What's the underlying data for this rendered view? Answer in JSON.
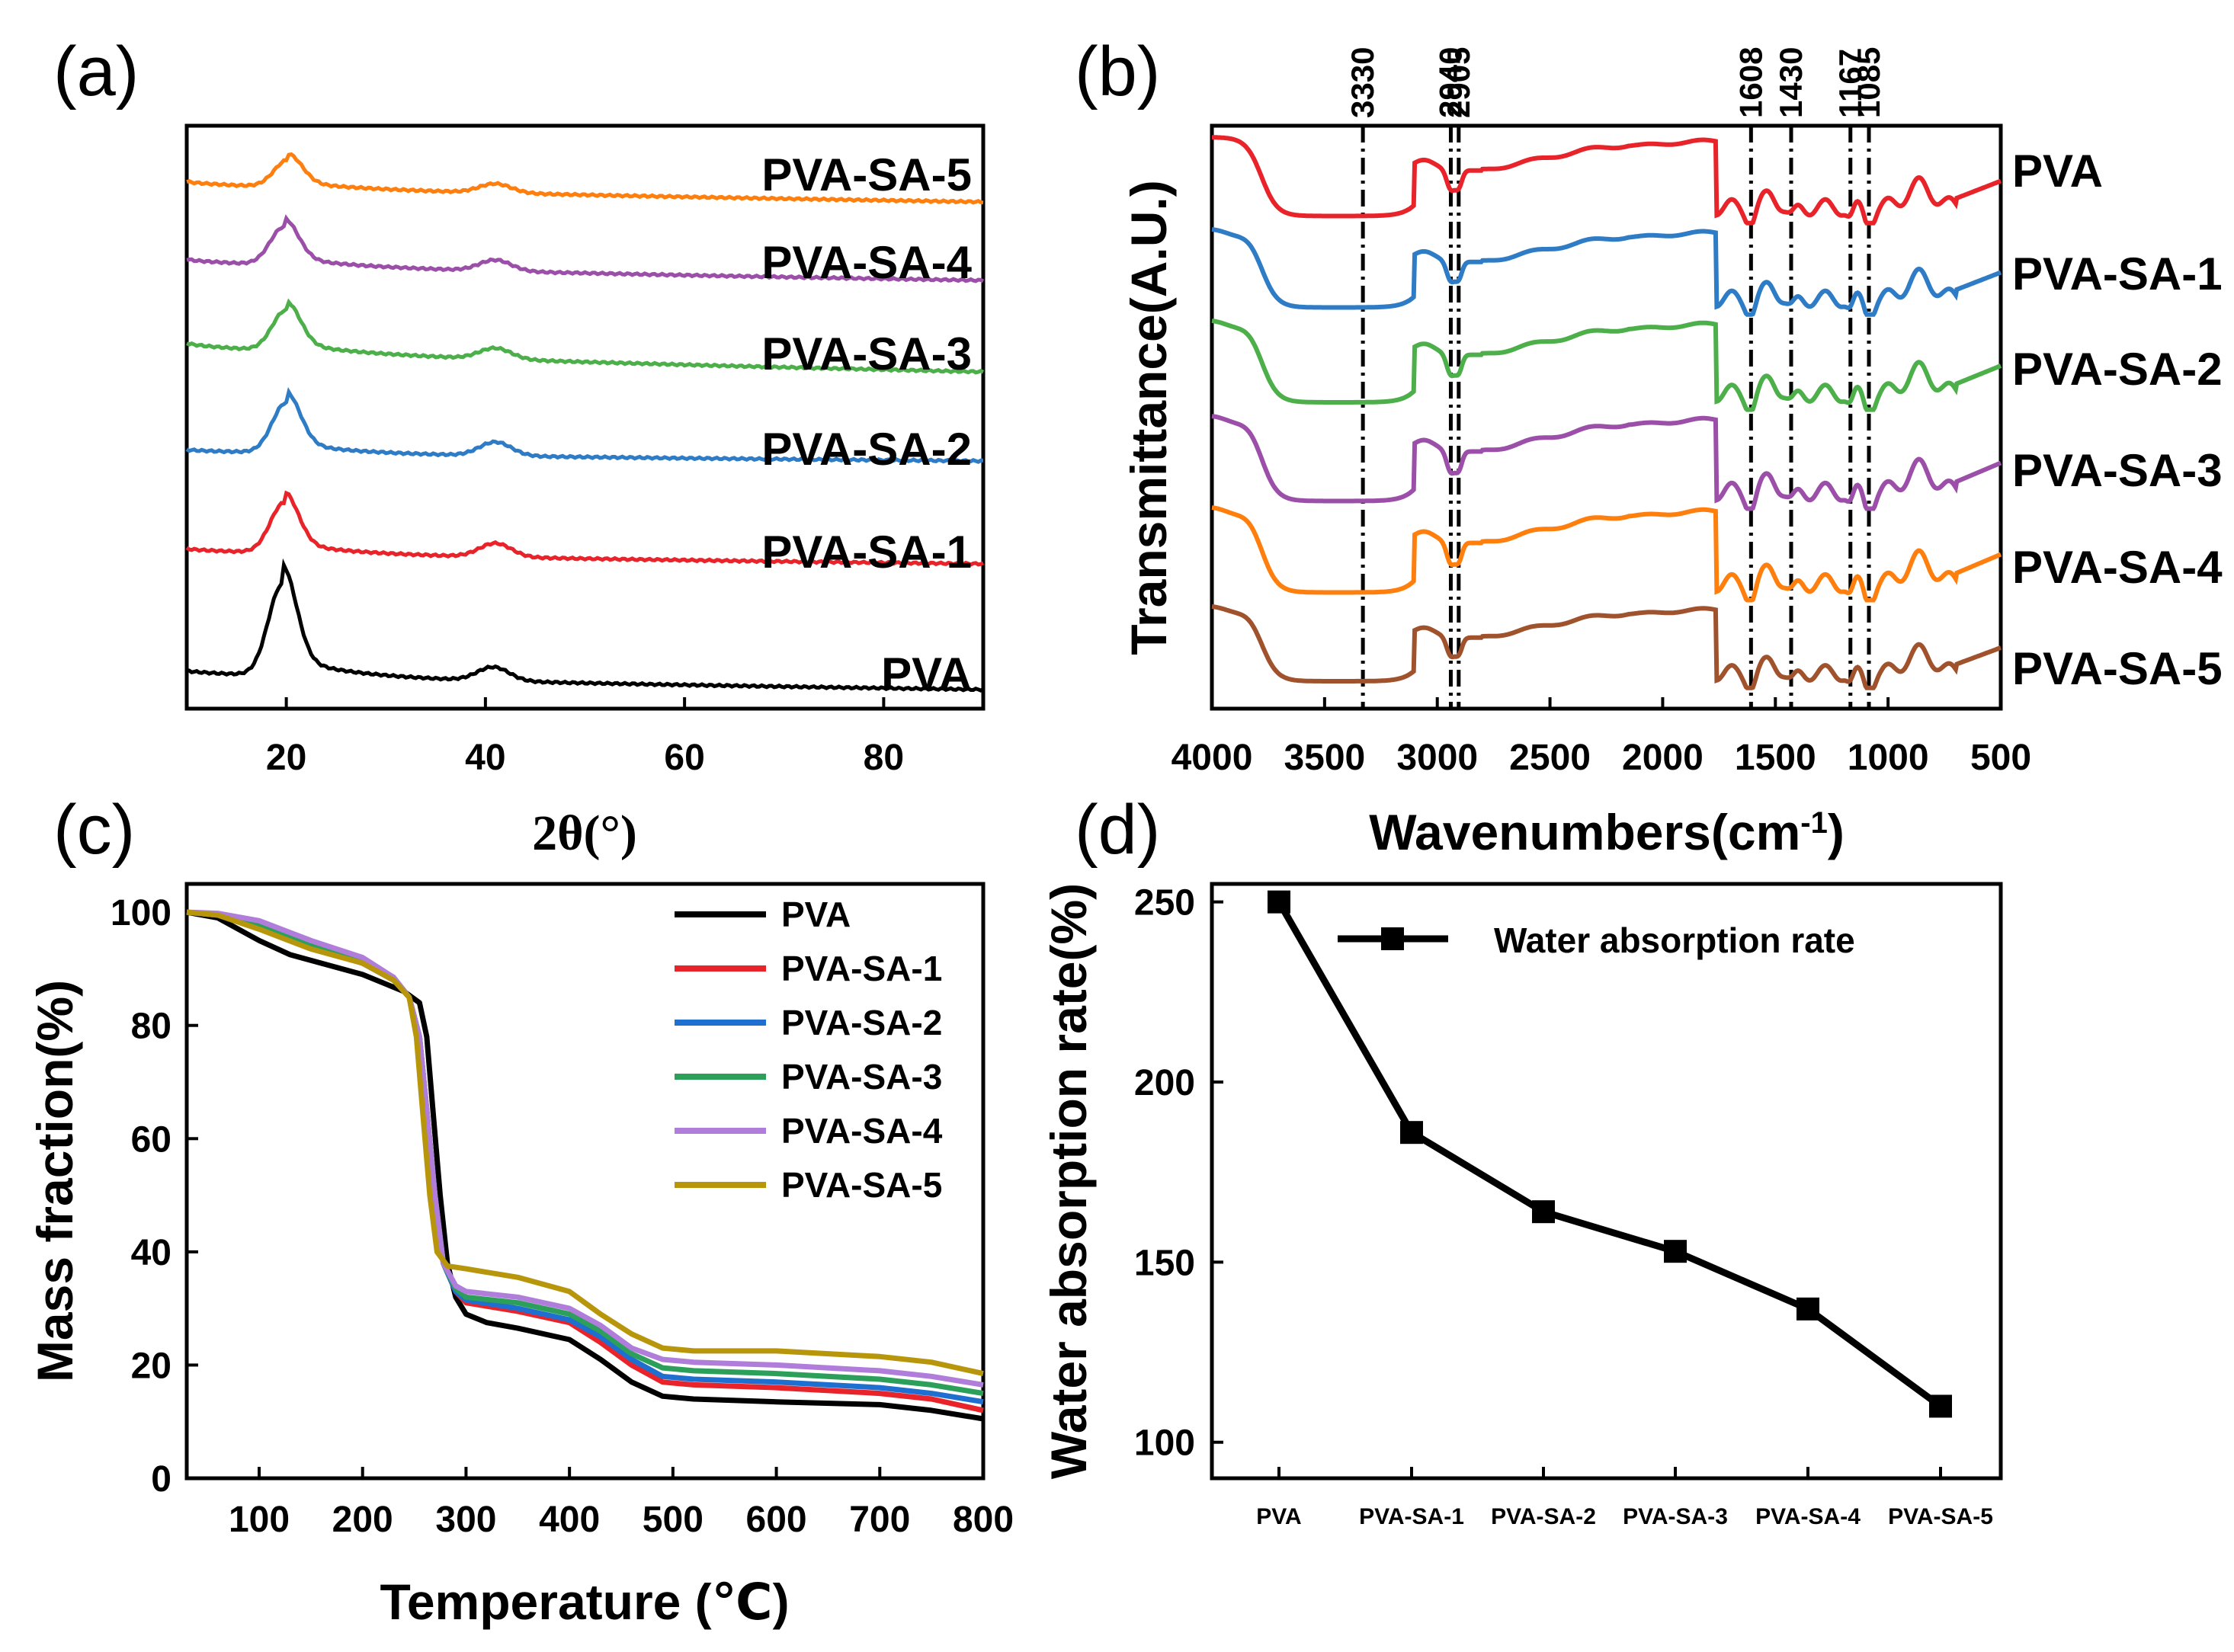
{
  "chart_data": [
    {
      "panel": "(a)",
      "type": "line",
      "xlabel": "2θ(°)",
      "ylabel": "",
      "xlim": [
        10,
        90
      ],
      "xticks": [
        "20",
        "40",
        "60",
        "80"
      ],
      "y_ticks_shown": false,
      "series": [
        {
          "name": "PVA",
          "color": "#000000",
          "peaks": [
            {
              "x": 19.6,
              "rel": 1.0
            },
            {
              "x": 40.8,
              "rel": 0.15
            }
          ]
        },
        {
          "name": "PVA-SA-1",
          "color": "#e8232a",
          "peaks": [
            {
              "x": 19.8,
              "rel": 0.55
            },
            {
              "x": 41.0,
              "rel": 0.15
            }
          ]
        },
        {
          "name": "PVA-SA-2",
          "color": "#2e7bc6",
          "peaks": [
            {
              "x": 20.0,
              "rel": 0.55
            },
            {
              "x": 41.0,
              "rel": 0.15
            }
          ]
        },
        {
          "name": "PVA-SA-3",
          "color": "#4daf4a",
          "peaks": [
            {
              "x": 20.0,
              "rel": 0.45
            },
            {
              "x": 41.0,
              "rel": 0.12
            }
          ]
        },
        {
          "name": "PVA-SA-4",
          "color": "#9b4fa8",
          "peaks": [
            {
              "x": 19.8,
              "rel": 0.42
            },
            {
              "x": 41.0,
              "rel": 0.12
            }
          ]
        },
        {
          "name": "PVA-SA-5",
          "color": "#ff7f0e",
          "peaks": [
            {
              "x": 20.2,
              "rel": 0.3
            },
            {
              "x": 41.0,
              "rel": 0.1
            }
          ]
        }
      ]
    },
    {
      "panel": "(b)",
      "type": "line",
      "xlabel": "Wavenumbers(cm",
      "xlabel_sup": "-1",
      "xlabel_end": ")",
      "ylabel": "Transmittance(A.U.)",
      "xlim": [
        4000,
        500
      ],
      "xticks": [
        "4000",
        "3500",
        "3000",
        "2500",
        "2000",
        "1500",
        "1000",
        "500"
      ],
      "reference_lines": [
        "3330",
        "2940",
        "2905",
        "1608",
        "1430",
        "1167",
        "1085"
      ],
      "series": [
        {
          "name": "PVA",
          "color": "#e8232a"
        },
        {
          "name": "PVA-SA-1",
          "color": "#2e7bc6"
        },
        {
          "name": "PVA-SA-2",
          "color": "#4daf4a"
        },
        {
          "name": "PVA-SA-3",
          "color": "#9b4fa8"
        },
        {
          "name": "PVA-SA-4",
          "color": "#ff7f0e"
        },
        {
          "name": "PVA-SA-5",
          "color": "#a0522d"
        }
      ]
    },
    {
      "panel": "(c)",
      "type": "line",
      "xlabel": "Temperature (℃)",
      "ylabel": "Mass fraction(%)",
      "xlim": [
        30,
        800
      ],
      "ylim": [
        0,
        105
      ],
      "xticks": [
        "100",
        "200",
        "300",
        "400",
        "500",
        "600",
        "700",
        "800"
      ],
      "yticks": [
        "0",
        "20",
        "40",
        "60",
        "80",
        "100"
      ],
      "legend_position": "top-right",
      "series": [
        {
          "name": "PVA",
          "color": "#000000",
          "x": [
            30,
            60,
            100,
            130,
            200,
            240,
            255,
            262,
            268,
            275,
            282,
            290,
            300,
            320,
            350,
            400,
            430,
            460,
            490,
            520,
            600,
            700,
            750,
            800
          ],
          "y": [
            100,
            99,
            95,
            92.5,
            89,
            86,
            84,
            78,
            65,
            50,
            38,
            32,
            29,
            27.5,
            26.5,
            24.5,
            21,
            17,
            14.5,
            14,
            13.5,
            13,
            12,
            10.5
          ]
        },
        {
          "name": "PVA-SA-1",
          "color": "#e8232a",
          "x": [
            30,
            60,
            100,
            150,
            200,
            230,
            245,
            255,
            262,
            270,
            278,
            290,
            300,
            350,
            400,
            430,
            460,
            490,
            520,
            600,
            700,
            750,
            800
          ],
          "y": [
            100,
            99.5,
            97.5,
            94,
            91,
            88,
            85,
            78,
            65,
            50,
            38,
            33,
            31,
            29.5,
            27.5,
            24,
            20,
            17,
            16.5,
            16,
            15,
            14,
            12
          ]
        },
        {
          "name": "PVA-SA-2",
          "color": "#1f6fd0",
          "x": [
            30,
            60,
            100,
            150,
            200,
            230,
            245,
            255,
            262,
            270,
            278,
            290,
            300,
            350,
            400,
            430,
            460,
            490,
            520,
            600,
            700,
            750,
            800
          ],
          "y": [
            100,
            99.5,
            97.5,
            94,
            91,
            88,
            85,
            78,
            65,
            50,
            38,
            33,
            31.5,
            30,
            28,
            25,
            21,
            18,
            17.5,
            17,
            16,
            15,
            13.5
          ]
        },
        {
          "name": "PVA-SA-3",
          "color": "#2ca05a",
          "x": [
            30,
            60,
            100,
            150,
            200,
            230,
            245,
            255,
            262,
            270,
            278,
            290,
            300,
            350,
            400,
            430,
            460,
            490,
            520,
            600,
            700,
            750,
            800
          ],
          "y": [
            100,
            99.5,
            98,
            94.5,
            91.5,
            88.5,
            85,
            78,
            65,
            50,
            38,
            33.5,
            32,
            31,
            29,
            26,
            22,
            19.5,
            19,
            18.5,
            17.5,
            16.5,
            15
          ]
        },
        {
          "name": "PVA-SA-4",
          "color": "#b07ddb",
          "x": [
            30,
            60,
            100,
            150,
            200,
            230,
            245,
            255,
            262,
            270,
            278,
            290,
            300,
            350,
            400,
            430,
            460,
            490,
            520,
            600,
            700,
            750,
            800
          ],
          "y": [
            100,
            99.8,
            98.5,
            95,
            92,
            88.5,
            85,
            78,
            65,
            50,
            38,
            34,
            33,
            32,
            30,
            27,
            23,
            21,
            20.5,
            20,
            19,
            18,
            16.5
          ]
        },
        {
          "name": "PVA-SA-5",
          "color": "#b8960c",
          "x": [
            30,
            60,
            100,
            150,
            200,
            230,
            245,
            252,
            258,
            265,
            272,
            282,
            300,
            350,
            400,
            430,
            460,
            490,
            520,
            600,
            700,
            750,
            800
          ],
          "y": [
            100,
            99.5,
            97,
            93.5,
            91,
            88,
            85,
            78,
            65,
            50,
            40,
            37.5,
            37,
            35.5,
            33,
            29,
            25.5,
            23,
            22.5,
            22.5,
            21.5,
            20.5,
            18.5
          ]
        }
      ]
    },
    {
      "panel": "(d)",
      "type": "line",
      "xlabel": "",
      "ylabel": "Water absorption rate(%)",
      "ylim": [
        90,
        255
      ],
      "yticks": [
        "100",
        "150",
        "200",
        "250"
      ],
      "categories": [
        "PVA",
        "PVA-SA-1",
        "PVA-SA-2",
        "PVA-SA-3",
        "PVA-SA-4",
        "PVA-SA-5"
      ],
      "legend_position": "top-right",
      "series": [
        {
          "name": "Water absorption rate",
          "color": "#000000",
          "values": [
            250,
            186,
            164,
            153,
            137,
            110
          ]
        }
      ]
    }
  ]
}
